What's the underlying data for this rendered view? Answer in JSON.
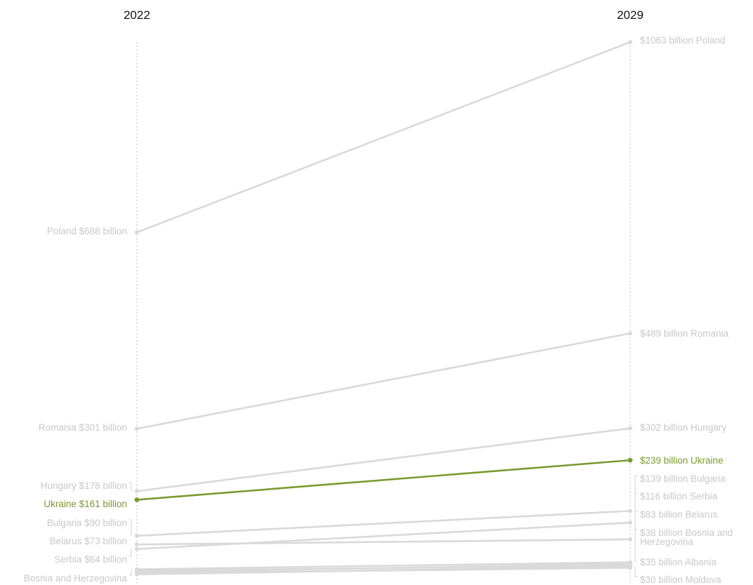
{
  "chart_data": {
    "type": "line",
    "subtype": "slope",
    "x": [
      "2022",
      "2029"
    ],
    "value_unit": "billion USD",
    "highlight_color": "#7a9a2e",
    "muted_color": "#d9d9d9",
    "muted_text_color": "#c8c8c8",
    "grid": false,
    "series": [
      {
        "name": "Poland",
        "values": [
          688,
          1063
        ],
        "label_2022": "Poland $688 billion",
        "label_2029": "$1063 billion Poland",
        "highlight": false
      },
      {
        "name": "Romania",
        "values": [
          301,
          489
        ],
        "label_2022": "Romania $301 billion",
        "label_2029": "$489 billion Romania",
        "highlight": false
      },
      {
        "name": "Hungary",
        "values": [
          178,
          302
        ],
        "label_2022": "Hungary $178 billion",
        "label_2029": "$302 billion Hungary",
        "highlight": false
      },
      {
        "name": "Ukraine",
        "values": [
          161,
          239
        ],
        "label_2022": "Ukraine $161 billion",
        "label_2029": "$239 billion Ukraine",
        "highlight": true
      },
      {
        "name": "Bulgaria",
        "values": [
          90,
          139
        ],
        "label_2022": "Bulgaria $90 billion",
        "label_2029": "$139 billion Bulgaria",
        "highlight": false
      },
      {
        "name": "Belarus",
        "values": [
          73,
          83
        ],
        "label_2022": "Belarus $73 billion",
        "label_2029": "$83 billion Belarus",
        "highlight": false
      },
      {
        "name": "Serbia",
        "values": [
          64,
          116
        ],
        "label_2022": "Serbia $64 billion",
        "label_2029": "$116 billion Serbia",
        "highlight": false
      },
      {
        "name": "Bosnia and Herzegovina",
        "values": [
          24,
          38
        ],
        "label_2022": "Bosnia and Herzegovina",
        "label_2029": "$38 billion Bosnia and Herzegovina",
        "highlight": false
      },
      {
        "name": "Albania",
        "values": [
          18,
          35
        ],
        "label_2022": "",
        "label_2029": "$35 billion Albania",
        "highlight": false
      },
      {
        "name": "Moldova",
        "values": [
          14,
          30
        ],
        "label_2022": "",
        "label_2029": "$30 billion Moldova",
        "highlight": false
      },
      {
        "name": "",
        "values": [
          21,
          32
        ],
        "label_2022": "",
        "label_2029": "",
        "highlight": false
      },
      {
        "name": "",
        "values": [
          16,
          27
        ],
        "label_2022": "",
        "label_2029": "",
        "highlight": false
      }
    ]
  }
}
